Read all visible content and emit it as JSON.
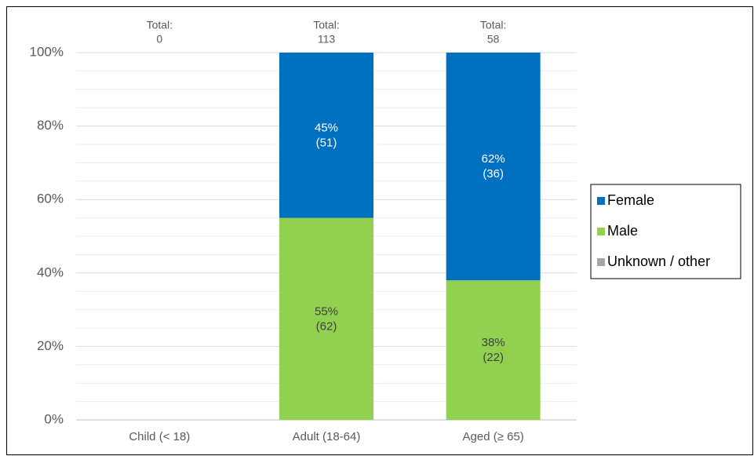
{
  "chart_data": {
    "type": "stacked_bar_percent",
    "categories": [
      "Child (< 18)",
      "Adult (18-64)",
      "Aged (≥ 65)"
    ],
    "total_prefix": "Total:",
    "totals": [
      0,
      113,
      58
    ],
    "series": [
      {
        "name": "Male",
        "color": "#92d050",
        "label_color": "#404040",
        "values": [
          null,
          55,
          38
        ],
        "value_labels": [
          null,
          "55%",
          "38%"
        ],
        "count_labels": [
          null,
          "(62)",
          "(22)"
        ]
      },
      {
        "name": "Female",
        "color": "#0070c0",
        "label_color": "#ffffff",
        "values": [
          null,
          45,
          62
        ],
        "value_labels": [
          null,
          "45%",
          "62%"
        ],
        "count_labels": [
          null,
          "(51)",
          "(36)"
        ]
      },
      {
        "name": "Unknown / other",
        "color": "#a5a5a5",
        "label_color": "#404040",
        "values": [
          null,
          0,
          0
        ]
      }
    ],
    "legend_order": [
      1,
      0,
      2
    ],
    "ylim": [
      0,
      100
    ],
    "yticks": [
      {
        "value": 0,
        "label": "0%"
      },
      {
        "value": 20,
        "label": "20%"
      },
      {
        "value": 40,
        "label": "40%"
      },
      {
        "value": 60,
        "label": "60%"
      },
      {
        "value": 80,
        "label": "80%"
      },
      {
        "value": 100,
        "label": "100%"
      }
    ],
    "grid": true,
    "minor_grid": true,
    "legend": "right"
  }
}
